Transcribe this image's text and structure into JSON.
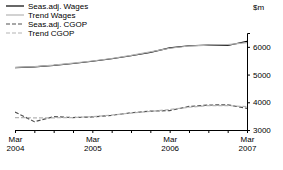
{
  "chart_data": {
    "type": "line",
    "y_label": "$m",
    "categories": [
      "Mar 2004",
      null,
      null,
      null,
      "Mar 2005",
      null,
      null,
      null,
      "Mar 2006",
      null,
      null,
      null,
      "Mar 2007"
    ],
    "series": [
      {
        "name": "Seas.adj. Wages",
        "color": "#000000",
        "line_style": "solid",
        "values": [
          5250,
          5280,
          5330,
          5400,
          5480,
          5570,
          5680,
          5800,
          5960,
          6040,
          6060,
          6050,
          6200
        ]
      },
      {
        "name": "Trend Wages",
        "color": "#b4b4b4",
        "line_style": "solid",
        "values": [
          5260,
          5290,
          5340,
          5410,
          5490,
          5580,
          5690,
          5820,
          5950,
          6030,
          6060,
          6080,
          6150
        ]
      },
      {
        "name": "Seas.adj. CGOP",
        "color": "#505050",
        "line_style": "dashed",
        "values": [
          3650,
          3300,
          3480,
          3450,
          3470,
          3530,
          3620,
          3680,
          3700,
          3850,
          3900,
          3910,
          3780
        ]
      },
      {
        "name": "Trend CGOP",
        "color": "#b4b4b4",
        "line_style": "dashed",
        "values": [
          3450,
          3440,
          3440,
          3450,
          3480,
          3540,
          3610,
          3670,
          3740,
          3820,
          3880,
          3880,
          3840
        ]
      }
    ],
    "ylim": [
      3000,
      6500
    ],
    "yticks": [
      3000,
      4000,
      5000,
      6000
    ],
    "legend": "top-left",
    "grid": false
  }
}
